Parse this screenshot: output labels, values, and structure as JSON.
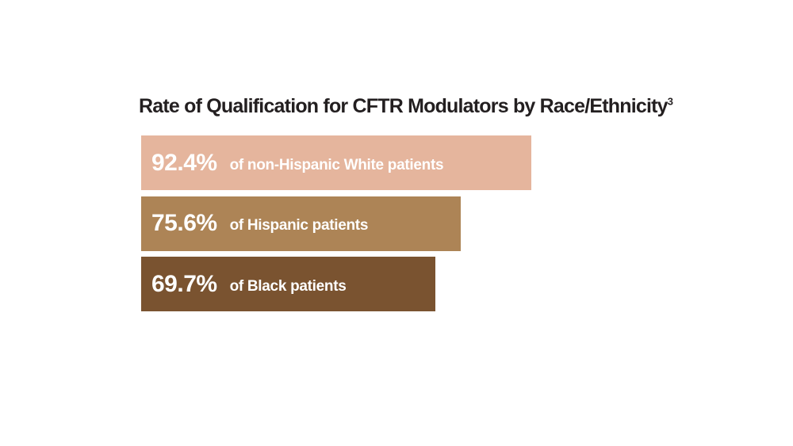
{
  "chart_data": {
    "type": "bar",
    "orientation": "horizontal",
    "title": "Rate of Qualification for CFTR Modulators by Race/Ethnicity",
    "title_superscript": "3",
    "unit": "%",
    "xlim": [
      0,
      100
    ],
    "grid": false,
    "legend": "none",
    "bars": [
      {
        "value": 92.4,
        "value_label": "92.4%",
        "label": "of non-Hispanic White patients",
        "color": "#e5b59d"
      },
      {
        "value": 75.6,
        "value_label": "75.6%",
        "label": "of Hispanic patients",
        "color": "#ad8456"
      },
      {
        "value": 69.7,
        "value_label": "69.7%",
        "label": "of Black patients",
        "color": "#7a5330"
      }
    ]
  }
}
